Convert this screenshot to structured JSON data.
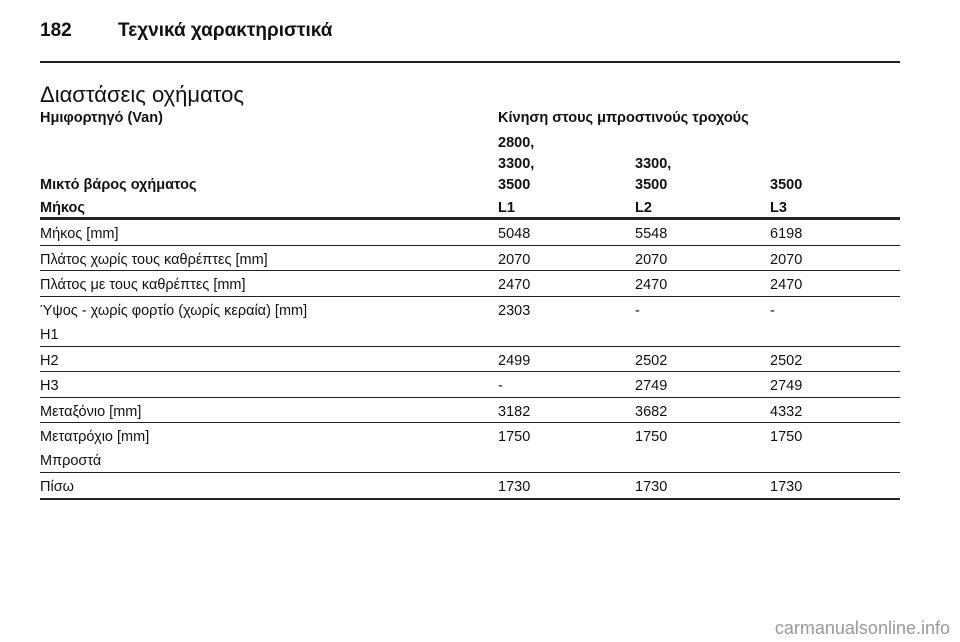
{
  "header": {
    "page_number": "182",
    "title": "Τεχνικά χαρακτηριστικά"
  },
  "section_title": "Διαστάσεις οχήματος",
  "table": {
    "vehicle_type": "Ημιφορτηγό (Van)",
    "drive": "Κίνηση στους μπροστινούς τροχούς",
    "weight_label": "Μικτό βάρος οχήματος",
    "weights": [
      [
        "2800,",
        "3300,",
        "3500"
      ],
      [
        "3300,",
        "3500"
      ],
      [
        "3500"
      ]
    ],
    "length_label": "Μήκος",
    "lengths": [
      "L1",
      "L2",
      "L3"
    ],
    "rows": [
      {
        "label": [
          "Μήκος [mm]"
        ],
        "values": [
          "5048",
          "5548",
          "6198"
        ]
      },
      {
        "label": [
          "Πλάτος χωρίς τους καθρέπτες [mm]"
        ],
        "values": [
          "2070",
          "2070",
          "2070"
        ]
      },
      {
        "label": [
          "Πλάτος με τους καθρέπτες [mm]"
        ],
        "values": [
          "2470",
          "2470",
          "2470"
        ]
      },
      {
        "label": [
          "Ύψος - χωρίς φορτίο (χωρίς κεραία) [mm]",
          "H1"
        ],
        "values": [
          "2303",
          "-",
          "-"
        ]
      },
      {
        "label": [
          "H2"
        ],
        "values": [
          "2499",
          "2502",
          "2502"
        ]
      },
      {
        "label": [
          "H3"
        ],
        "values": [
          "-",
          "2749",
          "2749"
        ]
      },
      {
        "label": [
          "Μεταξόνιο [mm]"
        ],
        "values": [
          "3182",
          "3682",
          "4332"
        ]
      },
      {
        "label": [
          "Μετατρόχιο [mm]",
          "Μπροστά"
        ],
        "values": [
          "1750",
          "1750",
          "1750"
        ]
      },
      {
        "label": [
          "Πίσω"
        ],
        "values": [
          "1730",
          "1730",
          "1730"
        ]
      }
    ]
  },
  "watermark": "carmanualsonline.info"
}
